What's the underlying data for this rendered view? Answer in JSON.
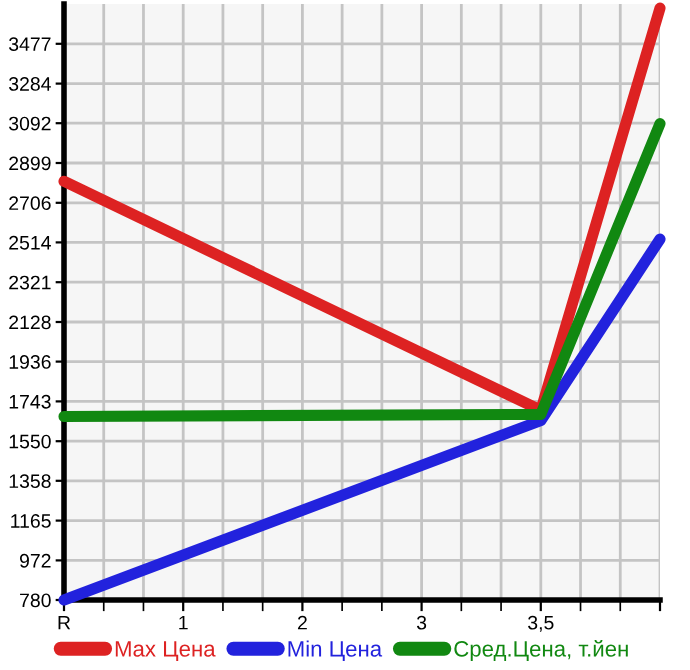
{
  "chart_data": {
    "type": "line",
    "categories": [
      "R",
      "1",
      "2",
      "3",
      "3,5",
      null
    ],
    "series": [
      {
        "name": "Max Цена",
        "color": "#dd2222",
        "values": [
          2810,
          null,
          null,
          null,
          1700,
          3650
        ]
      },
      {
        "name": "Min Цена",
        "color": "#2222dd",
        "values": [
          780,
          null,
          null,
          null,
          1650,
          2530
        ]
      },
      {
        "name": "Сред.Цена, т.йен",
        "color": "#118811",
        "values": [
          1670,
          null,
          null,
          null,
          1680,
          3090
        ]
      }
    ],
    "ylim": [
      780,
      3670
    ],
    "yticks": [
      780,
      972,
      1165,
      1358,
      1550,
      1743,
      1936,
      2128,
      2321,
      2514,
      2706,
      2899,
      3092,
      3284,
      3477
    ],
    "grid": true,
    "legend": "bottom",
    "marker": "none",
    "line_style": "solid"
  }
}
